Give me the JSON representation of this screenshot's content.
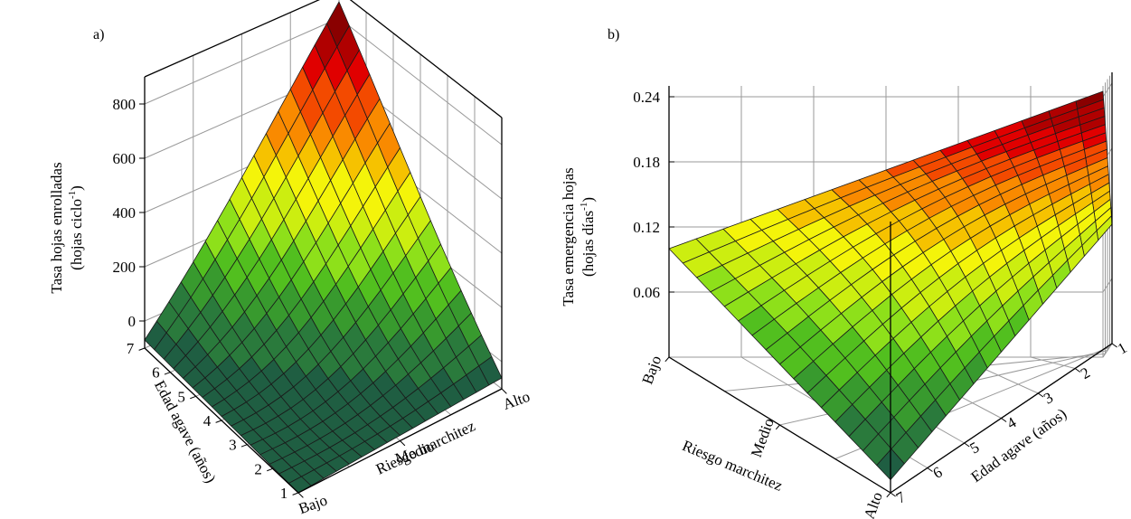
{
  "chart_data": [
    {
      "type": "surface",
      "panel_label": "a)",
      "zlabel_line1": "Tasa hojas enrolladas",
      "zlabel_line2_pre": "(hojas ciclo",
      "zlabel_line2_sup": "-1",
      "zlabel_line2_post": ")",
      "z_ticks": [
        "0",
        "200",
        "400",
        "600",
        "800"
      ],
      "zlim": [
        -100,
        900
      ],
      "age_label": "Edad agave (años)",
      "age_ticks": [
        "1",
        "2",
        "3",
        "4",
        "5",
        "6",
        "7"
      ],
      "risk_label": "Riesgo marchitez",
      "risk_ticks": [
        "Bajo",
        "Medio",
        "Alto"
      ],
      "surface_corners": {
        "age1_bajo": -100,
        "age7_bajo": -70,
        "age1_alto": -60,
        "age7_alto": 860
      }
    },
    {
      "type": "surface",
      "panel_label": "b)",
      "zlabel_line1": "Tasa emergencia hojas",
      "zlabel_line2_pre": "(hojas días",
      "zlabel_line2_sup": "-1",
      "zlabel_line2_post": ")",
      "z_ticks": [
        "0.06",
        "0.12",
        "0.18",
        "0.24"
      ],
      "zlim": [
        0.0,
        0.25
      ],
      "age_label": "Edad agave (años)",
      "age_ticks": [
        "1",
        "2",
        "3",
        "4",
        "5",
        "6",
        "7"
      ],
      "risk_label": "Riesgo marchitez",
      "risk_ticks": [
        "Bajo",
        "Medio",
        "Alto"
      ],
      "surface_corners": {
        "age1_bajo": 0.245,
        "age7_bajo": 0.1,
        "age1_alto": 0.11,
        "age7_alto": 0.012
      }
    }
  ],
  "colors": {
    "scale": [
      "#1f5e42",
      "#2a7a3c",
      "#389a2e",
      "#52bf1f",
      "#8ee01a",
      "#ccee10",
      "#f4f40a",
      "#f6c200",
      "#f98a00",
      "#f34a00",
      "#e00000",
      "#b00000",
      "#8a0000"
    ],
    "mesh": "#1a1a1a",
    "frame": "#000000",
    "grid": "#9a9a9a"
  }
}
